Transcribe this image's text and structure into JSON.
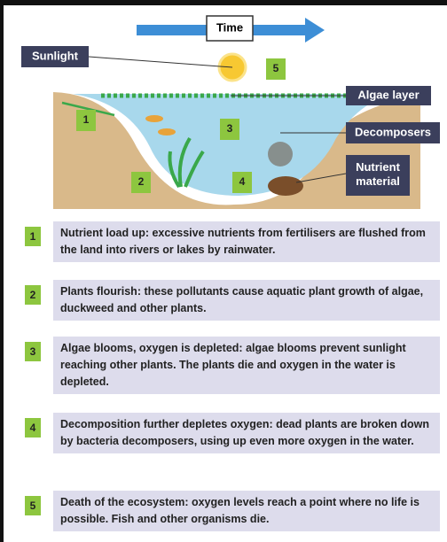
{
  "header": {
    "time": "Time"
  },
  "labels": {
    "sunlight": "Sunlight",
    "algae_layer": "Algae layer",
    "decomposers": "Decomposers",
    "nutrient_material": "Nutrient material"
  },
  "markers": [
    "1",
    "2",
    "3",
    "4",
    "5"
  ],
  "steps": [
    {
      "number": "1",
      "text": "Nutrient load up: excessive nutrients from fertilisers are flushed from the land into rivers or lakes by rainwater."
    },
    {
      "number": "2",
      "text": "Plants flourish: these pollutants cause aquatic plant growth of algae, duckweed and other plants."
    },
    {
      "number": "3",
      "text": "Algae blooms, oxygen is depleted: algae blooms prevent sunlight reaching other plants. The plants die and oxygen in the water is depleted."
    },
    {
      "number": "4",
      "text": "Decomposition further depletes oxygen: dead plants are broken down by bacteria decomposers, using up even more oxygen in the water."
    },
    {
      "number": "5",
      "text": "Death of the ecosystem: oxygen levels reach a point where no life is possible. Fish and other organisms die."
    }
  ]
}
